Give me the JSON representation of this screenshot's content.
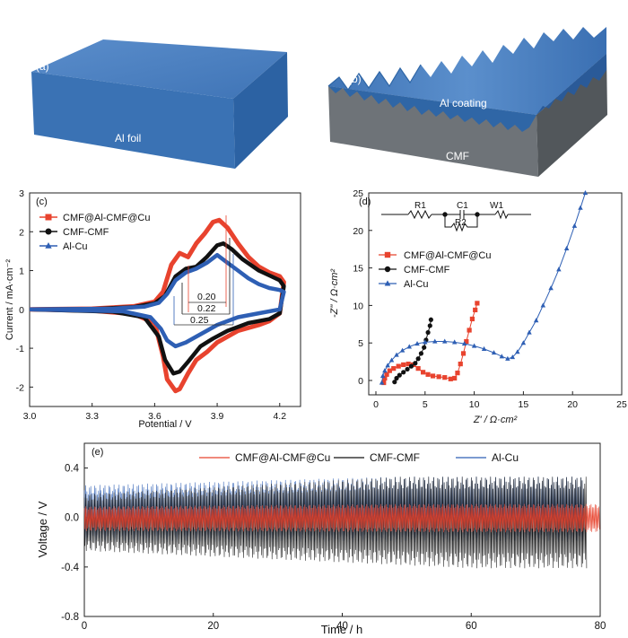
{
  "panels": {
    "a": {
      "label": "(a)",
      "foil_label": "Al foil"
    },
    "b": {
      "label": "(b)",
      "coating_label": "Al coating",
      "substrate_label": "CMF"
    }
  },
  "colors": {
    "red": "#e8432e",
    "black": "#111111",
    "blue": "#2e5fb4",
    "block_top": "#4a7fbf",
    "block_side": "#2f66a6",
    "substrate": "#6e7378"
  },
  "chart_data": [
    {
      "id": "c",
      "type": "line",
      "panel_label": "(c)",
      "xlabel": "Potential / V",
      "ylabel": "Current / mA·cm⁻²",
      "xlim": [
        3.0,
        4.3
      ],
      "ylim": [
        -2.5,
        3.0
      ],
      "xticks": [
        "3.0",
        "3.3",
        "3.6",
        "3.9",
        "4.2"
      ],
      "yticks": [
        "-2",
        "-1",
        "0",
        "1",
        "2",
        "3"
      ],
      "legend_position": "top-left",
      "annotations": [
        "0.20",
        "0.22",
        "0.25"
      ],
      "series": [
        {
          "name": "CMF@Al-CMF@Cu",
          "color": "#e8432e",
          "marker": "square",
          "anodic": [
            [
              3.0,
              0.0
            ],
            [
              3.3,
              0.02
            ],
            [
              3.5,
              0.08
            ],
            [
              3.6,
              0.2
            ],
            [
              3.64,
              0.45
            ],
            [
              3.68,
              1.15
            ],
            [
              3.72,
              1.45
            ],
            [
              3.76,
              1.35
            ],
            [
              3.8,
              1.7
            ],
            [
              3.84,
              1.95
            ],
            [
              3.88,
              2.25
            ],
            [
              3.91,
              2.3
            ],
            [
              3.95,
              2.1
            ],
            [
              4.0,
              1.7
            ],
            [
              4.05,
              1.35
            ],
            [
              4.1,
              1.1
            ],
            [
              4.15,
              0.95
            ],
            [
              4.2,
              0.85
            ],
            [
              4.22,
              0.7
            ]
          ],
          "cathodic": [
            [
              4.22,
              0.7
            ],
            [
              4.2,
              -0.1
            ],
            [
              4.15,
              -0.3
            ],
            [
              4.1,
              -0.4
            ],
            [
              4.0,
              -0.55
            ],
            [
              3.95,
              -0.7
            ],
            [
              3.9,
              -0.85
            ],
            [
              3.85,
              -1.1
            ],
            [
              3.8,
              -1.3
            ],
            [
              3.76,
              -1.65
            ],
            [
              3.72,
              -2.05
            ],
            [
              3.7,
              -2.1
            ],
            [
              3.66,
              -1.8
            ],
            [
              3.64,
              -1.2
            ],
            [
              3.6,
              -0.35
            ],
            [
              3.5,
              -0.12
            ],
            [
              3.3,
              -0.03
            ],
            [
              3.0,
              0.0
            ]
          ]
        },
        {
          "name": "CMF-CMF",
          "color": "#111111",
          "marker": "circle",
          "anodic": [
            [
              3.0,
              0.0
            ],
            [
              3.3,
              0.01
            ],
            [
              3.5,
              0.06
            ],
            [
              3.6,
              0.16
            ],
            [
              3.65,
              0.35
            ],
            [
              3.7,
              0.85
            ],
            [
              3.75,
              1.05
            ],
            [
              3.8,
              1.1
            ],
            [
              3.85,
              1.35
            ],
            [
              3.9,
              1.65
            ],
            [
              3.93,
              1.7
            ],
            [
              3.97,
              1.55
            ],
            [
              4.02,
              1.3
            ],
            [
              4.1,
              1.0
            ],
            [
              4.16,
              0.85
            ],
            [
              4.2,
              0.75
            ],
            [
              4.22,
              0.6
            ]
          ],
          "cathodic": [
            [
              4.22,
              0.6
            ],
            [
              4.2,
              -0.1
            ],
            [
              4.15,
              -0.25
            ],
            [
              4.05,
              -0.35
            ],
            [
              3.95,
              -0.55
            ],
            [
              3.88,
              -0.75
            ],
            [
              3.82,
              -0.95
            ],
            [
              3.76,
              -1.35
            ],
            [
              3.72,
              -1.6
            ],
            [
              3.69,
              -1.65
            ],
            [
              3.65,
              -1.3
            ],
            [
              3.62,
              -0.7
            ],
            [
              3.55,
              -0.2
            ],
            [
              3.4,
              -0.06
            ],
            [
              3.0,
              0.0
            ]
          ]
        },
        {
          "name": "Al-Cu",
          "color": "#2e5fb4",
          "marker": "triangle",
          "anodic": [
            [
              3.0,
              0.0
            ],
            [
              3.4,
              0.02
            ],
            [
              3.55,
              0.07
            ],
            [
              3.62,
              0.17
            ],
            [
              3.66,
              0.4
            ],
            [
              3.7,
              0.75
            ],
            [
              3.75,
              0.95
            ],
            [
              3.8,
              1.05
            ],
            [
              3.85,
              1.2
            ],
            [
              3.9,
              1.4
            ],
            [
              3.95,
              1.2
            ],
            [
              4.0,
              1.0
            ],
            [
              4.05,
              0.8
            ],
            [
              4.1,
              0.65
            ],
            [
              4.15,
              0.55
            ],
            [
              4.2,
              0.5
            ],
            [
              4.22,
              0.45
            ]
          ],
          "cathodic": [
            [
              4.22,
              0.45
            ],
            [
              4.2,
              0.0
            ],
            [
              4.1,
              -0.1
            ],
            [
              4.0,
              -0.2
            ],
            [
              3.9,
              -0.4
            ],
            [
              3.85,
              -0.55
            ],
            [
              3.8,
              -0.7
            ],
            [
              3.75,
              -0.85
            ],
            [
              3.7,
              -0.95
            ],
            [
              3.66,
              -0.8
            ],
            [
              3.63,
              -0.5
            ],
            [
              3.58,
              -0.2
            ],
            [
              3.45,
              -0.05
            ],
            [
              3.0,
              0.0
            ]
          ]
        }
      ]
    },
    {
      "id": "d",
      "type": "scatter",
      "panel_label": "(d)",
      "xlabel": "Z' / Ω·cm²",
      "ylabel": "-Z'' / Ω·cm²",
      "xlim": [
        0,
        25
      ],
      "ylim": [
        -1.5,
        25
      ],
      "xticks": [
        "0",
        "5",
        "10",
        "15",
        "20",
        "25"
      ],
      "yticks": [
        "0",
        "5",
        "10",
        "15",
        "20",
        "25"
      ],
      "legend_position": "middle-left",
      "circuit_labels": [
        "R1",
        "C1",
        "R2",
        "W1"
      ],
      "series": [
        {
          "name": "CMF@Al-CMF@Cu",
          "color": "#e8432e",
          "marker": "square",
          "points": [
            [
              0.8,
              -0.3
            ],
            [
              0.9,
              0.3
            ],
            [
              1.1,
              0.8
            ],
            [
              1.4,
              1.3
            ],
            [
              1.8,
              1.6
            ],
            [
              2.3,
              1.9
            ],
            [
              2.8,
              2.1
            ],
            [
              3.3,
              2.2
            ],
            [
              3.8,
              2.1
            ],
            [
              4.3,
              1.6
            ],
            [
              4.8,
              1.1
            ],
            [
              5.3,
              0.8
            ],
            [
              5.8,
              0.6
            ],
            [
              6.4,
              0.5
            ],
            [
              7.0,
              0.4
            ],
            [
              7.6,
              0.2
            ],
            [
              8.0,
              0.3
            ],
            [
              8.3,
              1.0
            ],
            [
              8.6,
              2.2
            ],
            [
              8.9,
              3.6
            ],
            [
              9.2,
              5.2
            ],
            [
              9.5,
              6.7
            ],
            [
              9.8,
              8.2
            ],
            [
              10.1,
              9.4
            ],
            [
              10.3,
              10.3
            ]
          ]
        },
        {
          "name": "CMF-CMF",
          "color": "#111111",
          "marker": "circle",
          "points": [
            [
              1.9,
              -0.2
            ],
            [
              2.1,
              0.3
            ],
            [
              2.4,
              0.7
            ],
            [
              2.8,
              1.1
            ],
            [
              3.2,
              1.5
            ],
            [
              3.6,
              1.9
            ],
            [
              4.0,
              2.3
            ],
            [
              4.3,
              2.9
            ],
            [
              4.6,
              3.6
            ],
            [
              4.9,
              4.4
            ],
            [
              5.1,
              5.4
            ],
            [
              5.3,
              6.4
            ],
            [
              5.5,
              7.3
            ],
            [
              5.6,
              8.1
            ]
          ]
        },
        {
          "name": "Al-Cu",
          "color": "#2e5fb4",
          "marker": "triangle",
          "points": [
            [
              0.6,
              -0.3
            ],
            [
              0.7,
              0.6
            ],
            [
              0.9,
              1.3
            ],
            [
              1.2,
              2.0
            ],
            [
              1.6,
              2.7
            ],
            [
              2.1,
              3.4
            ],
            [
              2.7,
              4.0
            ],
            [
              3.4,
              4.5
            ],
            [
              4.2,
              4.9
            ],
            [
              5.0,
              5.1
            ],
            [
              6.0,
              5.2
            ],
            [
              7.0,
              5.2
            ],
            [
              8.0,
              5.1
            ],
            [
              9.0,
              4.9
            ],
            [
              10.0,
              4.6
            ],
            [
              11.0,
              4.2
            ],
            [
              12.0,
              3.7
            ],
            [
              12.8,
              3.2
            ],
            [
              13.4,
              2.9
            ],
            [
              13.9,
              3.1
            ],
            [
              14.4,
              3.8
            ],
            [
              15.0,
              5.0
            ],
            [
              15.6,
              6.4
            ],
            [
              16.3,
              8.0
            ],
            [
              17.0,
              10.0
            ],
            [
              17.8,
              12.3
            ],
            [
              18.6,
              14.8
            ],
            [
              19.4,
              17.6
            ],
            [
              20.2,
              20.6
            ],
            [
              20.8,
              23.0
            ],
            [
              21.3,
              25.0
            ]
          ]
        }
      ]
    },
    {
      "id": "e",
      "type": "line",
      "panel_label": "(e)",
      "xlabel": "Time / h",
      "ylabel": "Voltage / V",
      "xlim": [
        0,
        80
      ],
      "ylim": [
        -0.8,
        0.6
      ],
      "xticks": [
        "0",
        "20",
        "40",
        "60",
        "80"
      ],
      "yticks": [
        "-0.8",
        "-0.4",
        "0.0",
        "0.4"
      ],
      "legend_position": "top",
      "series": [
        {
          "name": "CMF@Al-CMF@Cu",
          "color": "#e8432e",
          "x_range": [
            0,
            80
          ],
          "amplitude_pos": [
            0.09,
            0.11
          ],
          "amplitude_neg": [
            -0.11,
            -0.12
          ]
        },
        {
          "name": "CMF-CMF",
          "color": "#111111",
          "x_range": [
            0,
            78
          ],
          "amplitude_pos": [
            0.19,
            0.33
          ],
          "amplitude_neg": [
            -0.27,
            -0.41
          ]
        },
        {
          "name": "Al-Cu",
          "color": "#2e5fb4",
          "x_range": [
            0,
            77.5
          ],
          "amplitude_pos": [
            0.26,
            0.33
          ],
          "amplitude_neg": [
            -0.2,
            -0.2
          ]
        }
      ]
    }
  ]
}
